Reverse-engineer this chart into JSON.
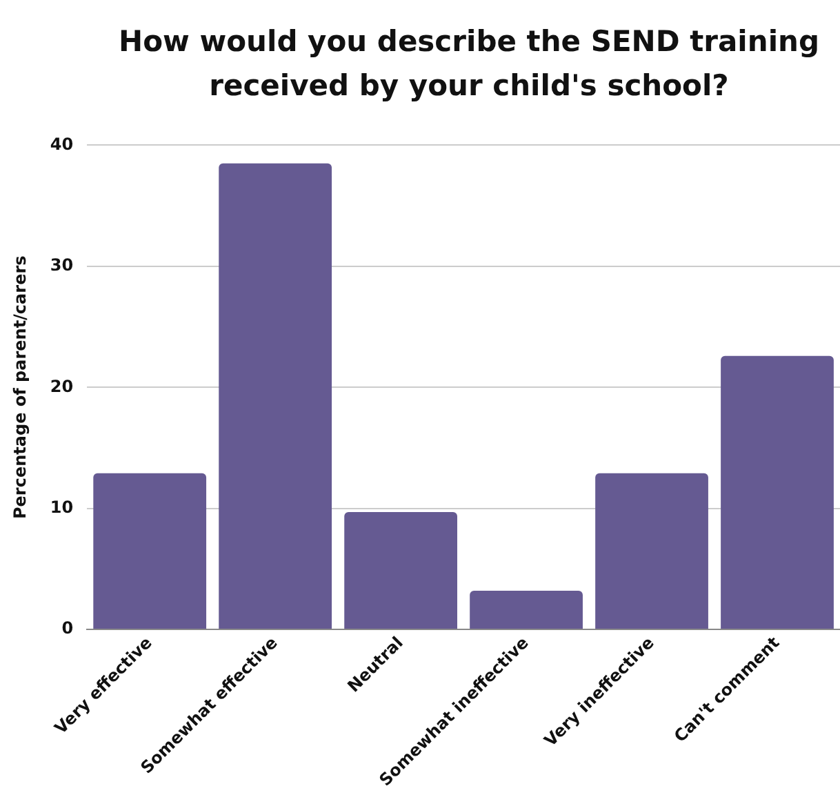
{
  "chart_data": {
    "type": "bar",
    "title": "How would you describe the SEND training received by your child's school?",
    "ylabel": "Percentage of parent/carers",
    "categories": [
      "Very effective",
      "Somewhat effective",
      "Neutral",
      "Somewhat ineffective",
      "Very ineffective",
      "Can't comment"
    ],
    "values": [
      12.9,
      38.5,
      9.7,
      3.2,
      12.9,
      22.6
    ],
    "color": "#655a92",
    "ylim": [
      0,
      40
    ],
    "yticks": [
      0,
      10,
      20,
      30,
      40
    ],
    "grid": "y"
  }
}
